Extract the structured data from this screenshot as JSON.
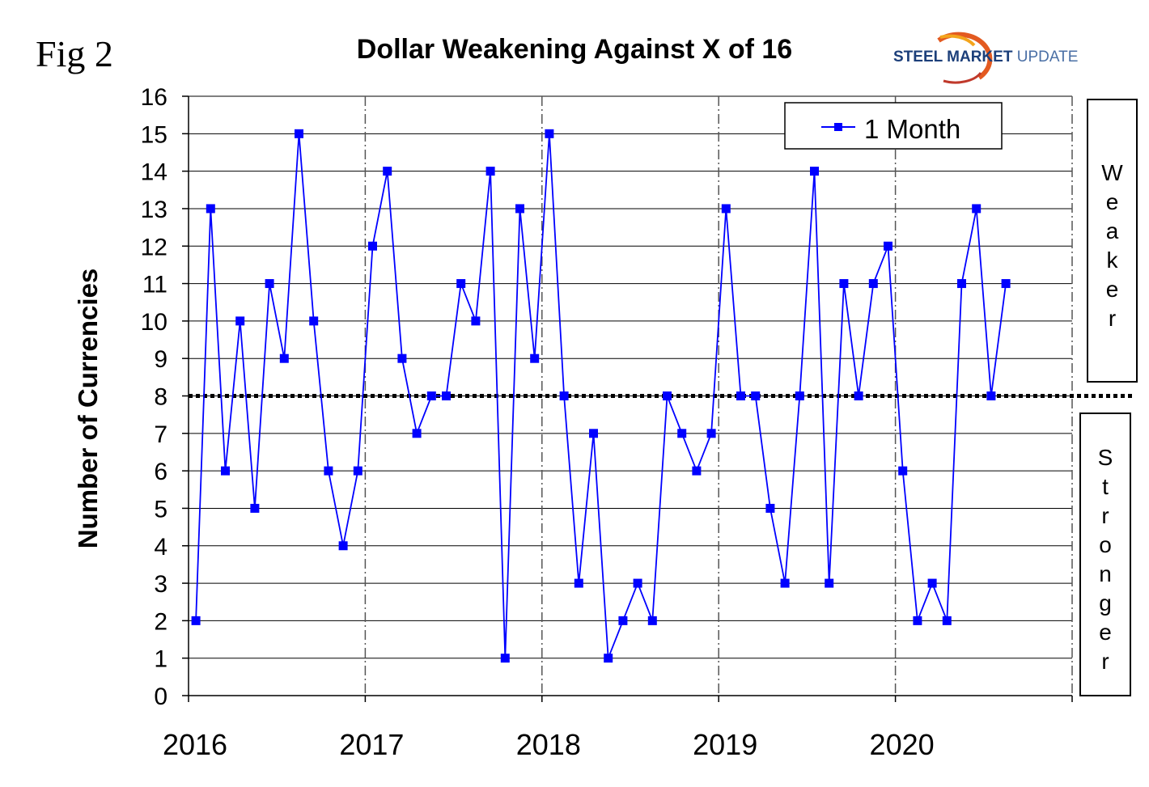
{
  "figure_label": "Fig 2",
  "logo": {
    "bold": "STEEL MARKET",
    "light": " UPDATE"
  },
  "weaker_label": "Weaker",
  "stronger_label": "Stronger",
  "chart_data": {
    "type": "line",
    "title": "Dollar Weakening Against X of 16",
    "xlabel": "",
    "ylabel": "Number of Currencies",
    "ylim": [
      0,
      16
    ],
    "yticks": [
      0,
      1,
      2,
      3,
      4,
      5,
      6,
      7,
      8,
      9,
      10,
      11,
      12,
      13,
      14,
      15,
      16
    ],
    "xtick_labels": [
      "2016",
      "2017",
      "2018",
      "2019",
      "2020"
    ],
    "grid": "horizontal solid lines; dash-dot vertical lines at year boundaries",
    "reference_line": {
      "value": 8,
      "style": "dotted"
    },
    "legend_position": "top-right",
    "series": [
      {
        "name": "1 Month",
        "color": "#0000ff",
        "marker": "square",
        "x": [
          "2016-01",
          "2016-02",
          "2016-03",
          "2016-04",
          "2016-05",
          "2016-06",
          "2016-07",
          "2016-08",
          "2016-09",
          "2016-10",
          "2016-11",
          "2016-12",
          "2017-01",
          "2017-02",
          "2017-03",
          "2017-04",
          "2017-05",
          "2017-06",
          "2017-07",
          "2017-08",
          "2017-09",
          "2017-10",
          "2017-11",
          "2017-12",
          "2018-01",
          "2018-02",
          "2018-03",
          "2018-04",
          "2018-05",
          "2018-06",
          "2018-07",
          "2018-08",
          "2018-09",
          "2018-10",
          "2018-11",
          "2018-12",
          "2019-01",
          "2019-02",
          "2019-03",
          "2019-04",
          "2019-05",
          "2019-06",
          "2019-07",
          "2019-08",
          "2019-09",
          "2019-10",
          "2019-11",
          "2019-12",
          "2020-01",
          "2020-02",
          "2020-03",
          "2020-04",
          "2020-05",
          "2020-06",
          "2020-07",
          "2020-08"
        ],
        "values": [
          2,
          13,
          6,
          10,
          5,
          11,
          9,
          15,
          10,
          6,
          4,
          6,
          12,
          14,
          9,
          7,
          8,
          8,
          11,
          10,
          14,
          1,
          13,
          9,
          15,
          8,
          3,
          7,
          1,
          2,
          3,
          2,
          8,
          7,
          6,
          7,
          13,
          8,
          8,
          5,
          3,
          8,
          14,
          3,
          11,
          8,
          11,
          12,
          6,
          2,
          3,
          2,
          11,
          13,
          8,
          11
        ]
      }
    ]
  }
}
